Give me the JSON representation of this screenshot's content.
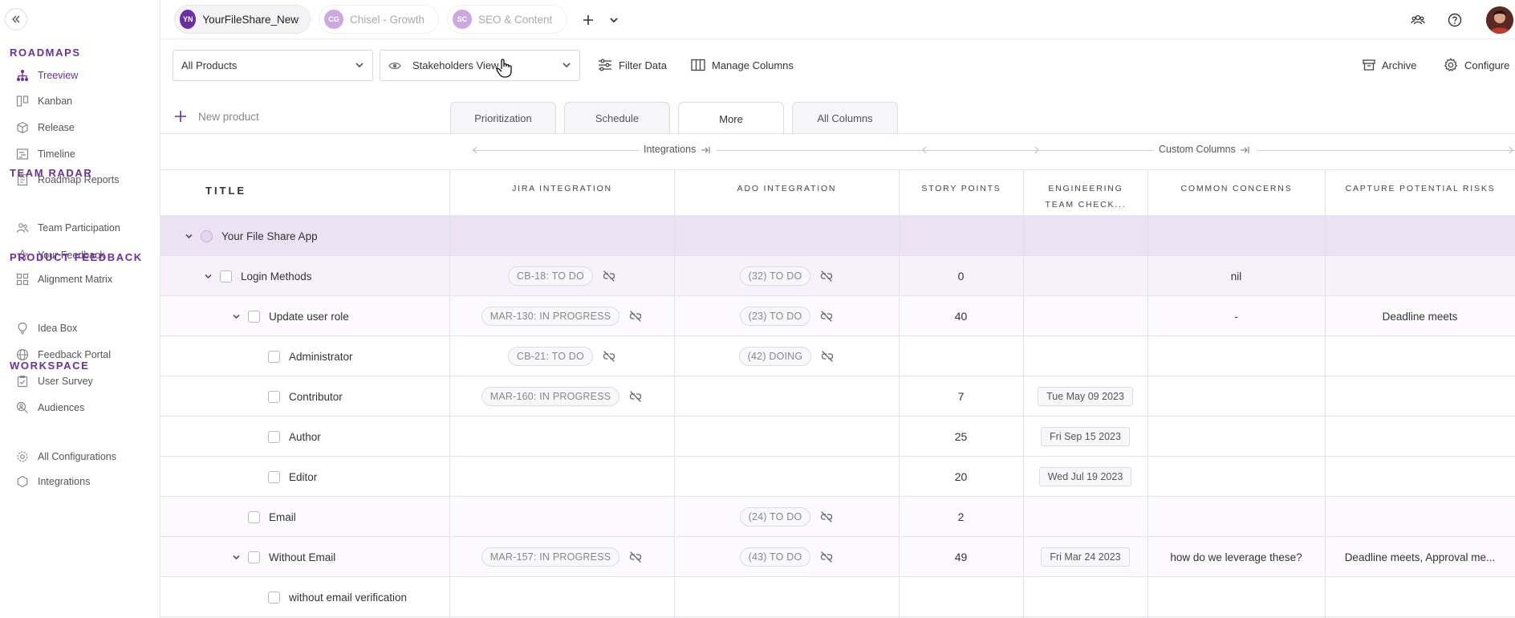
{
  "sidebar": {
    "sections": [
      {
        "label": "ROADMAPS",
        "items": [
          {
            "label": "Treeview",
            "icon": "hierarchy-icon",
            "active": true
          },
          {
            "label": "Kanban",
            "icon": "kanban-icon"
          },
          {
            "label": "Release",
            "icon": "cube-icon"
          },
          {
            "label": "Timeline",
            "icon": "timeline-icon"
          },
          {
            "label": "Roadmap Reports",
            "icon": "report-icon"
          }
        ]
      },
      {
        "label": "TEAM RADAR",
        "items": [
          {
            "label": "Team Participation",
            "icon": "participation-icon"
          },
          {
            "label": "Your Feedback",
            "icon": "star-icon"
          },
          {
            "label": "Alignment Matrix",
            "icon": "matrix-icon"
          }
        ]
      },
      {
        "label": "PRODUCT FEEDBACK",
        "items": [
          {
            "label": "Idea Box",
            "icon": "bulb-icon"
          },
          {
            "label": "Feedback Portal",
            "icon": "globe-icon"
          },
          {
            "label": "User Survey",
            "icon": "survey-icon"
          },
          {
            "label": "Audiences",
            "icon": "audience-icon"
          }
        ]
      },
      {
        "label": "WORKSPACE",
        "items": [
          {
            "label": "All Configurations",
            "icon": "gear-icon"
          },
          {
            "label": "Integrations",
            "icon": "hexagon-icon"
          }
        ]
      }
    ]
  },
  "topbar": {
    "workspaces": [
      {
        "initials": "YN",
        "label": "YourFileShare_New",
        "active": true,
        "color": "#6b2fa0"
      },
      {
        "initials": "CG",
        "label": "Chisel - Growth",
        "active": false
      },
      {
        "initials": "SC",
        "label": "SEO & Content",
        "active": false
      }
    ]
  },
  "toolbar": {
    "products_select": "All Products",
    "view_select": "Stakeholders View",
    "filter_label": "Filter Data",
    "columns_label": "Manage Columns",
    "archive_label": "Archive",
    "configure_label": "Configure",
    "new_product": "New product"
  },
  "view_tabs": [
    "Prioritization",
    "Schedule",
    "More",
    "All Columns"
  ],
  "active_view_tab": "More",
  "grid": {
    "group_headers": {
      "integrations": "Integrations",
      "custom": "Custom Columns"
    },
    "columns": {
      "title": "TITLE",
      "jira": "JIRA INTEGRATION",
      "ado": "ADO INTEGRATION",
      "story_points": "STORY POINTS",
      "eng_line1": "ENGINEERING",
      "eng_line2": "TEAM CHECK...",
      "concerns": "COMMON CONCERNS",
      "risks": "CAPTURE POTENTIAL RISKS"
    },
    "rows": [
      {
        "title": "Your File Share App",
        "level": 0,
        "expandable": true,
        "kind": "product",
        "jira": "",
        "ado": "",
        "points": "",
        "eng": "",
        "concerns": "",
        "risks": ""
      },
      {
        "title": "Login Methods",
        "level": 1,
        "expandable": true,
        "jira": "CB-18: TO DO",
        "ado": "(32) TO DO",
        "points": "0",
        "eng": "",
        "concerns": "nil",
        "risks": ""
      },
      {
        "title": "Update user role",
        "level": 2,
        "expandable": true,
        "jira": "MAR-130: IN PROGRESS",
        "ado": "(23) TO DO",
        "points": "40",
        "eng": "",
        "concerns": "-",
        "risks": "Deadline meets"
      },
      {
        "title": "Administrator",
        "level": 3,
        "expandable": false,
        "jira": "CB-21: TO DO",
        "ado": "(42) DOING",
        "points": "",
        "eng": "",
        "concerns": "",
        "risks": ""
      },
      {
        "title": "Contributor",
        "level": 3,
        "expandable": false,
        "jira": "MAR-160: IN PROGRESS",
        "ado": "",
        "points": "7",
        "eng": "Tue May 09 2023",
        "concerns": "",
        "risks": ""
      },
      {
        "title": "Author",
        "level": 3,
        "expandable": false,
        "jira": "",
        "ado": "",
        "points": "25",
        "eng": "Fri Sep 15 2023",
        "concerns": "",
        "risks": ""
      },
      {
        "title": "Editor",
        "level": 3,
        "expandable": false,
        "jira": "",
        "ado": "",
        "points": "20",
        "eng": "Wed Jul 19 2023",
        "concerns": "",
        "risks": ""
      },
      {
        "title": "Email",
        "level": 2,
        "expandable": false,
        "jira": "",
        "ado": "(24) TO DO",
        "points": "2",
        "eng": "",
        "concerns": "",
        "risks": ""
      },
      {
        "title": "Without Email",
        "level": 2,
        "expandable": true,
        "jira": "MAR-157: IN PROGRESS",
        "ado": "(43) TO DO",
        "points": "49",
        "eng": "Fri Mar 24 2023",
        "concerns": "how do we leverage these?",
        "risks": "Deadline meets, Approval me..."
      },
      {
        "title": "without email verification",
        "level": 3,
        "expandable": false,
        "jira": "",
        "ado": "",
        "points": "",
        "eng": "",
        "concerns": "",
        "risks": ""
      }
    ]
  },
  "colors": {
    "accent": "#6b2fa0",
    "product_row": "#ece2f4",
    "level1_row": "#f6f1fa",
    "level2_row": "#fcfafd"
  }
}
